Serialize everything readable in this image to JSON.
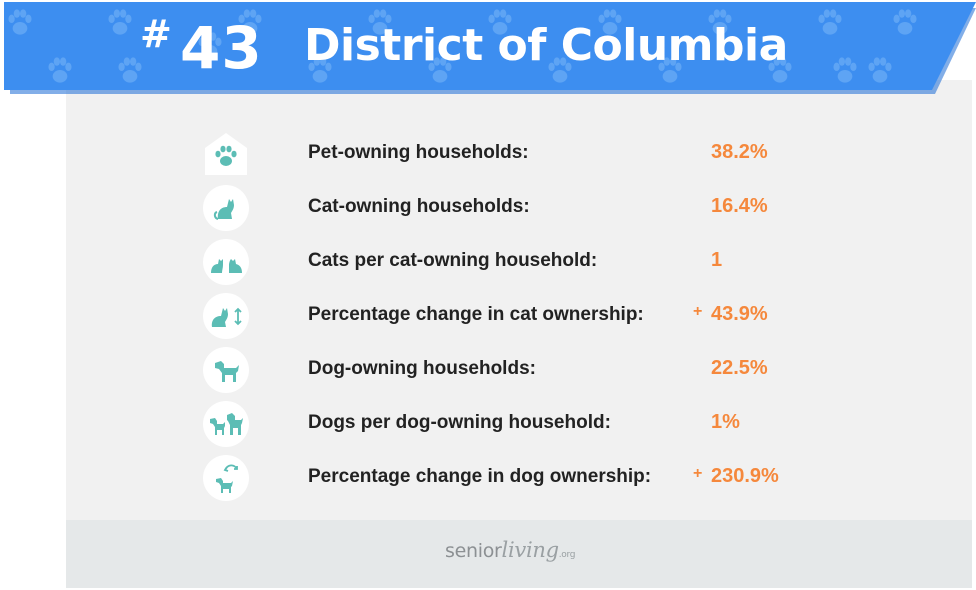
{
  "header": {
    "hash": "#",
    "rank": "43",
    "state": "District of Columbia",
    "banner_color": "#3d8ef0",
    "paw_color": "#5ea4f4"
  },
  "stats": [
    {
      "label": "Pet-owning households:",
      "value": "38.2%",
      "plus": "",
      "icon": "house-paw-icon"
    },
    {
      "label": "Cat-owning households:",
      "value": "16.4%",
      "plus": "",
      "icon": "cat-icon"
    },
    {
      "label": "Cats per cat-owning household:",
      "value": "1",
      "plus": "",
      "icon": "two-cats-icon"
    },
    {
      "label": "Percentage change in cat ownership:",
      "value": "43.9%",
      "plus": "+",
      "icon": "cat-change-icon"
    },
    {
      "label": "Dog-owning households:",
      "value": "22.5%",
      "plus": "",
      "icon": "dog-icon"
    },
    {
      "label": "Dogs per dog-owning household:",
      "value": "1%",
      "plus": "",
      "icon": "two-dogs-icon"
    },
    {
      "label": "Percentage change in dog ownership:",
      "value": "230.9%",
      "plus": "+",
      "icon": "dog-change-icon"
    }
  ],
  "colors": {
    "accent": "#f5883c",
    "icon_teal": "#5cbdb5",
    "card_bg": "#f1f1f1",
    "footer_bg": "#e5e8e9"
  },
  "footer": {
    "logo_part1": "senior",
    "logo_part2": "living",
    "logo_part3": ".org"
  }
}
